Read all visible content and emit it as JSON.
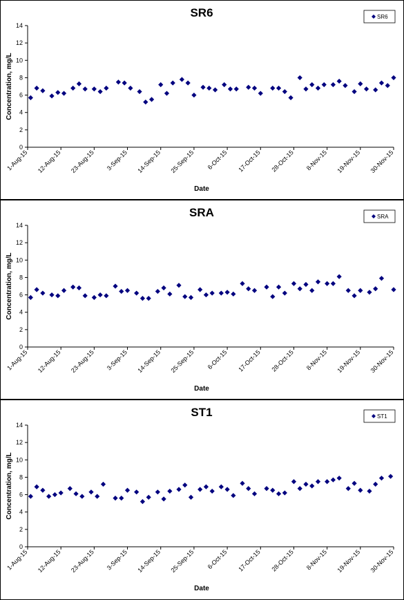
{
  "chart_data": [
    {
      "type": "scatter",
      "title": "SR6",
      "xlabel": "Date",
      "ylabel": "Concentration, mg/L",
      "ylim": [
        0,
        14
      ],
      "yticks": [
        "0",
        "2",
        "4",
        "6",
        "8",
        "10",
        "12",
        "14"
      ],
      "xticks": [
        "1-Aug-15",
        "12-Aug-15",
        "23-Aug-15",
        "3-Sep-15",
        "14-Sep-15",
        "25-Sep-15",
        "6-Oct-15",
        "17-Oct-15",
        "28-Oct-15",
        "8-Nov-15",
        "19-Nov-15",
        "30-Nov-15"
      ],
      "xlim": [
        "2015-08-01",
        "2015-11-30"
      ],
      "legend_position": "top-right",
      "grid": false,
      "color": "#00007F",
      "series": [
        {
          "name": "SR6",
          "points": [
            [
              "2015-08-02",
              5.7
            ],
            [
              "2015-08-04",
              6.8
            ],
            [
              "2015-08-06",
              6.5
            ],
            [
              "2015-08-09",
              5.9
            ],
            [
              "2015-08-11",
              6.3
            ],
            [
              "2015-08-13",
              6.2
            ],
            [
              "2015-08-16",
              6.8
            ],
            [
              "2015-08-18",
              7.3
            ],
            [
              "2015-08-20",
              6.7
            ],
            [
              "2015-08-23",
              6.7
            ],
            [
              "2015-08-25",
              6.4
            ],
            [
              "2015-08-27",
              6.8
            ],
            [
              "2015-08-31",
              7.5
            ],
            [
              "2015-09-02",
              7.4
            ],
            [
              "2015-09-04",
              6.8
            ],
            [
              "2015-09-07",
              6.4
            ],
            [
              "2015-09-09",
              5.2
            ],
            [
              "2015-09-11",
              5.5
            ],
            [
              "2015-09-14",
              7.2
            ],
            [
              "2015-09-16",
              6.2
            ],
            [
              "2015-09-18",
              7.4
            ],
            [
              "2015-09-21",
              7.8
            ],
            [
              "2015-09-23",
              7.4
            ],
            [
              "2015-09-25",
              6.0
            ],
            [
              "2015-09-28",
              6.9
            ],
            [
              "2015-09-30",
              6.8
            ],
            [
              "2015-10-02",
              6.6
            ],
            [
              "2015-10-05",
              7.2
            ],
            [
              "2015-10-07",
              6.7
            ],
            [
              "2015-10-09",
              6.7
            ],
            [
              "2015-10-13",
              6.9
            ],
            [
              "2015-10-15",
              6.8
            ],
            [
              "2015-10-17",
              6.2
            ],
            [
              "2015-10-21",
              6.8
            ],
            [
              "2015-10-23",
              6.8
            ],
            [
              "2015-10-25",
              6.4
            ],
            [
              "2015-10-27",
              5.7
            ],
            [
              "2015-10-30",
              8.0
            ],
            [
              "2015-11-01",
              6.7
            ],
            [
              "2015-11-03",
              7.2
            ],
            [
              "2015-11-05",
              6.8
            ],
            [
              "2015-11-07",
              7.2
            ],
            [
              "2015-11-10",
              7.2
            ],
            [
              "2015-11-12",
              7.6
            ],
            [
              "2015-11-14",
              7.1
            ],
            [
              "2015-11-17",
              6.4
            ],
            [
              "2015-11-19",
              7.3
            ],
            [
              "2015-11-21",
              6.7
            ],
            [
              "2015-11-24",
              6.6
            ],
            [
              "2015-11-26",
              7.4
            ],
            [
              "2015-11-28",
              7.1
            ],
            [
              "2015-11-30",
              8.0
            ]
          ]
        }
      ]
    },
    {
      "type": "scatter",
      "title": "SRA",
      "xlabel": "Date",
      "ylabel": "Concentration, mg/L",
      "ylim": [
        0,
        14
      ],
      "yticks": [
        "0",
        "2",
        "4",
        "6",
        "8",
        "10",
        "12",
        "14"
      ],
      "xticks": [
        "1-Aug-15",
        "12-Aug-15",
        "23-Aug-15",
        "3-Sep-15",
        "14-Sep-15",
        "25-Sep-15",
        "6-Oct-15",
        "17-Oct-15",
        "28-Oct-15",
        "8-Nov-15",
        "19-Nov-15",
        "30-Nov-15"
      ],
      "xlim": [
        "2015-08-01",
        "2015-11-30"
      ],
      "legend_position": "top-right",
      "grid": false,
      "color": "#00007F",
      "series": [
        {
          "name": "SRA",
          "points": [
            [
              "2015-08-02",
              5.7
            ],
            [
              "2015-08-04",
              6.6
            ],
            [
              "2015-08-06",
              6.2
            ],
            [
              "2015-08-09",
              6.0
            ],
            [
              "2015-08-11",
              5.9
            ],
            [
              "2015-08-13",
              6.5
            ],
            [
              "2015-08-16",
              6.9
            ],
            [
              "2015-08-18",
              6.8
            ],
            [
              "2015-08-20",
              5.9
            ],
            [
              "2015-08-23",
              5.7
            ],
            [
              "2015-08-25",
              6.0
            ],
            [
              "2015-08-27",
              5.9
            ],
            [
              "2015-08-30",
              7.0
            ],
            [
              "2015-09-01",
              6.4
            ],
            [
              "2015-09-03",
              6.5
            ],
            [
              "2015-09-06",
              6.2
            ],
            [
              "2015-09-08",
              5.6
            ],
            [
              "2015-09-10",
              5.6
            ],
            [
              "2015-09-13",
              6.4
            ],
            [
              "2015-09-15",
              6.8
            ],
            [
              "2015-09-17",
              6.1
            ],
            [
              "2015-09-20",
              7.1
            ],
            [
              "2015-09-22",
              5.8
            ],
            [
              "2015-09-24",
              5.7
            ],
            [
              "2015-09-27",
              6.6
            ],
            [
              "2015-09-29",
              6.0
            ],
            [
              "2015-10-01",
              6.2
            ],
            [
              "2015-10-04",
              6.2
            ],
            [
              "2015-10-06",
              6.3
            ],
            [
              "2015-10-08",
              6.1
            ],
            [
              "2015-10-11",
              7.3
            ],
            [
              "2015-10-13",
              6.7
            ],
            [
              "2015-10-15",
              6.5
            ],
            [
              "2015-10-19",
              6.9
            ],
            [
              "2015-10-21",
              5.8
            ],
            [
              "2015-10-23",
              6.9
            ],
            [
              "2015-10-25",
              6.2
            ],
            [
              "2015-10-28",
              7.3
            ],
            [
              "2015-10-30",
              6.7
            ],
            [
              "2015-11-01",
              7.2
            ],
            [
              "2015-11-03",
              6.5
            ],
            [
              "2015-11-05",
              7.5
            ],
            [
              "2015-11-08",
              7.3
            ],
            [
              "2015-11-10",
              7.3
            ],
            [
              "2015-11-12",
              8.1
            ],
            [
              "2015-11-15",
              6.5
            ],
            [
              "2015-11-17",
              5.9
            ],
            [
              "2015-11-19",
              6.5
            ],
            [
              "2015-11-22",
              6.3
            ],
            [
              "2015-11-24",
              6.7
            ],
            [
              "2015-11-26",
              7.9
            ],
            [
              "2015-11-30",
              6.6
            ]
          ]
        }
      ]
    },
    {
      "type": "scatter",
      "title": "ST1",
      "xlabel": "Date",
      "ylabel": "Concentration, mg/L",
      "ylim": [
        0,
        14
      ],
      "yticks": [
        "0",
        "2",
        "4",
        "6",
        "8",
        "10",
        "12",
        "14"
      ],
      "xticks": [
        "1-Aug-15",
        "12-Aug-15",
        "23-Aug-15",
        "3-Sep-15",
        "14-Sep-15",
        "25-Sep-15",
        "6-Oct-15",
        "17-Oct-15",
        "28-Oct-15",
        "8-Nov-15",
        "19-Nov-15",
        "30-Nov-15"
      ],
      "xlim": [
        "2015-08-01",
        "2015-11-30"
      ],
      "legend_position": "top-right",
      "grid": false,
      "color": "#00007F",
      "series": [
        {
          "name": "ST1",
          "points": [
            [
              "2015-08-02",
              5.8
            ],
            [
              "2015-08-04",
              6.9
            ],
            [
              "2015-08-06",
              6.5
            ],
            [
              "2015-08-08",
              5.8
            ],
            [
              "2015-08-10",
              6.0
            ],
            [
              "2015-08-12",
              6.2
            ],
            [
              "2015-08-15",
              6.7
            ],
            [
              "2015-08-17",
              6.1
            ],
            [
              "2015-08-19",
              5.8
            ],
            [
              "2015-08-22",
              6.3
            ],
            [
              "2015-08-24",
              5.8
            ],
            [
              "2015-08-26",
              7.2
            ],
            [
              "2015-08-30",
              5.6
            ],
            [
              "2015-09-01",
              5.6
            ],
            [
              "2015-09-03",
              6.5
            ],
            [
              "2015-09-06",
              6.3
            ],
            [
              "2015-09-08",
              5.2
            ],
            [
              "2015-09-10",
              5.7
            ],
            [
              "2015-09-13",
              6.3
            ],
            [
              "2015-09-15",
              5.5
            ],
            [
              "2015-09-17",
              6.4
            ],
            [
              "2015-09-20",
              6.6
            ],
            [
              "2015-09-22",
              7.1
            ],
            [
              "2015-09-24",
              5.7
            ],
            [
              "2015-09-27",
              6.6
            ],
            [
              "2015-09-29",
              6.9
            ],
            [
              "2015-10-01",
              6.4
            ],
            [
              "2015-10-04",
              6.9
            ],
            [
              "2015-10-06",
              6.6
            ],
            [
              "2015-10-08",
              5.9
            ],
            [
              "2015-10-11",
              7.3
            ],
            [
              "2015-10-13",
              6.7
            ],
            [
              "2015-10-15",
              6.1
            ],
            [
              "2015-10-19",
              6.7
            ],
            [
              "2015-10-21",
              6.5
            ],
            [
              "2015-10-23",
              6.1
            ],
            [
              "2015-10-25",
              6.2
            ],
            [
              "2015-10-28",
              7.5
            ],
            [
              "2015-10-30",
              6.7
            ],
            [
              "2015-11-01",
              7.2
            ],
            [
              "2015-11-03",
              7.0
            ],
            [
              "2015-11-05",
              7.5
            ],
            [
              "2015-11-08",
              7.5
            ],
            [
              "2015-11-10",
              7.7
            ],
            [
              "2015-11-12",
              7.9
            ],
            [
              "2015-11-15",
              6.7
            ],
            [
              "2015-11-17",
              7.3
            ],
            [
              "2015-11-19",
              6.5
            ],
            [
              "2015-11-22",
              6.4
            ],
            [
              "2015-11-24",
              7.2
            ],
            [
              "2015-11-26",
              7.9
            ],
            [
              "2015-11-29",
              8.1
            ]
          ]
        }
      ]
    }
  ]
}
